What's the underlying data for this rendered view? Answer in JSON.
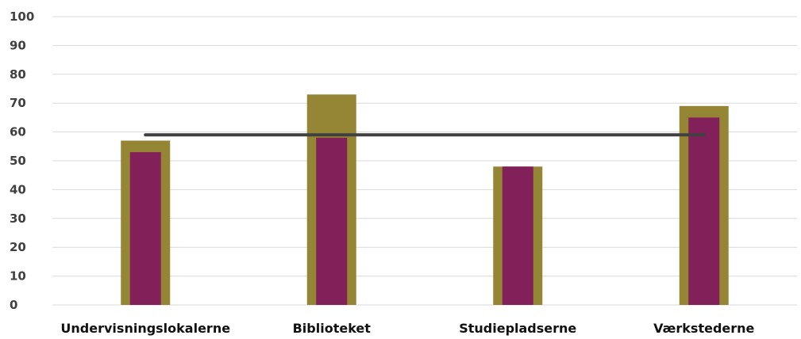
{
  "chart_data": {
    "type": "bar",
    "categories": [
      "Undervisningslokalerne",
      "Biblioteket",
      "Studiepladserne",
      "Værkstederne"
    ],
    "series": [
      {
        "values": [
          57,
          73,
          48,
          69
        ],
        "color": "#958635",
        "style": "wide-bar"
      },
      {
        "values": [
          53,
          58,
          48,
          65
        ],
        "color": "#82205a",
        "style": "narrow-bar"
      },
      {
        "values": [
          59,
          59,
          59,
          59
        ],
        "color": "#404040",
        "style": "line"
      }
    ],
    "yticks": [
      "0",
      "10",
      "20",
      "30",
      "40",
      "50",
      "60",
      "70",
      "80",
      "90",
      "100"
    ],
    "ylim": [
      0,
      100
    ],
    "grid": true,
    "legend": "none",
    "gridline_color": "#d9d9d9"
  }
}
